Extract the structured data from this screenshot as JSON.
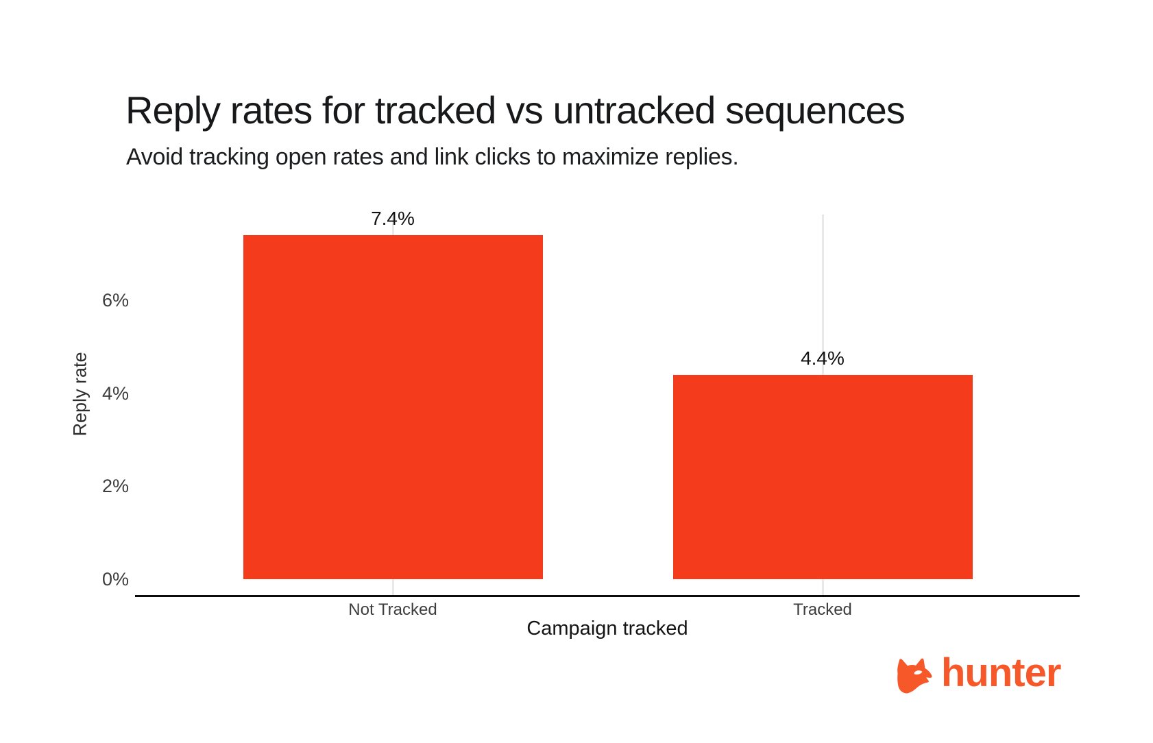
{
  "header": {
    "title": "Reply rates for tracked vs untracked sequences",
    "subtitle": "Avoid tracking open rates and link clicks to maximize replies."
  },
  "chart_data": {
    "type": "bar",
    "title": "Reply rates for tracked vs untracked sequences",
    "subtitle": "Avoid tracking open rates and link clicks to maximize replies.",
    "categories": [
      "Not Tracked",
      "Tracked"
    ],
    "values": [
      7.4,
      4.4
    ],
    "value_labels": [
      "7.4%",
      "4.4%"
    ],
    "xlabel": "Campaign tracked",
    "ylabel": "Reply rate",
    "yticks": [
      0,
      2,
      4,
      6
    ],
    "ytick_labels": [
      "0%",
      "2%",
      "4%",
      "6%"
    ],
    "ylim": [
      0,
      7.85
    ],
    "grid": "vertical category gridlines only",
    "legend": "none",
    "bar_color": "#f43b1c",
    "gridline_color": "#e9e9e9",
    "axis_line_color": "#0c0c0c"
  },
  "branding": {
    "logo_icon": "fox-head-icon",
    "logo_text": "hunter",
    "logo_color": "#f7582a"
  }
}
